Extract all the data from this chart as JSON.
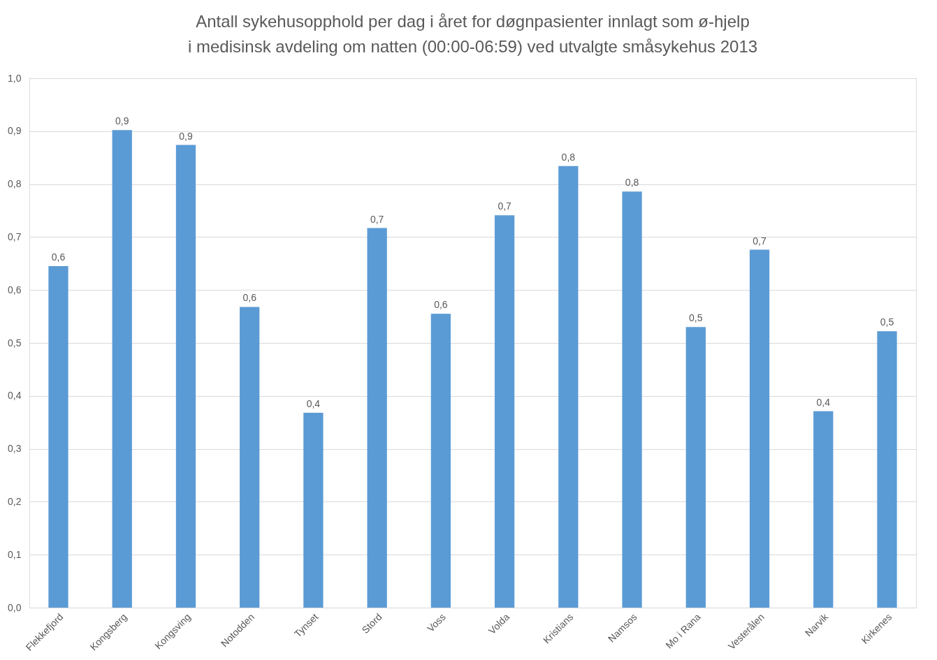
{
  "chart_data": {
    "type": "bar",
    "title": "Antall sykehusopphold  per dag i året for døgnpasienter innlagt som ø-hjelp i medisinsk avdeling om natten (00:00-06:59) ved utvalgte småsykehus  2013",
    "categories": [
      "Flekkefjord",
      "Kongsberg",
      "Kongsving",
      "Notodden",
      "Tynset",
      "Stord",
      "Voss",
      "Volda",
      "Kristians",
      "Namsos",
      "Mo i Rana",
      "Vesterålen",
      "Narvik",
      "Kirkenes"
    ],
    "values": [
      0.645,
      0.902,
      0.874,
      0.568,
      0.368,
      0.717,
      0.555,
      0.741,
      0.834,
      0.786,
      0.53,
      0.676,
      0.371,
      0.522
    ],
    "value_labels": [
      "0,6",
      "0,9",
      "0,9",
      "0,6",
      "0,4",
      "0,7",
      "0,6",
      "0,7",
      "0,8",
      "0,8",
      "0,5",
      "0,7",
      "0,4",
      "0,5"
    ],
    "color": "#5b9bd5",
    "ylim": [
      0,
      1
    ],
    "yticks": [
      {
        "value": 0,
        "label": "0,0"
      },
      {
        "value": 0.1,
        "label": "0,1"
      },
      {
        "value": 0.2,
        "label": "0,2"
      },
      {
        "value": 0.3,
        "label": "0,3"
      },
      {
        "value": 0.4,
        "label": "0,4"
      },
      {
        "value": 0.5,
        "label": "0,5"
      },
      {
        "value": 0.6,
        "label": "0,6"
      },
      {
        "value": 0.7,
        "label": "0,7"
      },
      {
        "value": 0.8,
        "label": "0,8"
      },
      {
        "value": 0.9,
        "label": "0,9"
      },
      {
        "value": 1,
        "label": "1,0"
      }
    ],
    "grid": "y"
  }
}
